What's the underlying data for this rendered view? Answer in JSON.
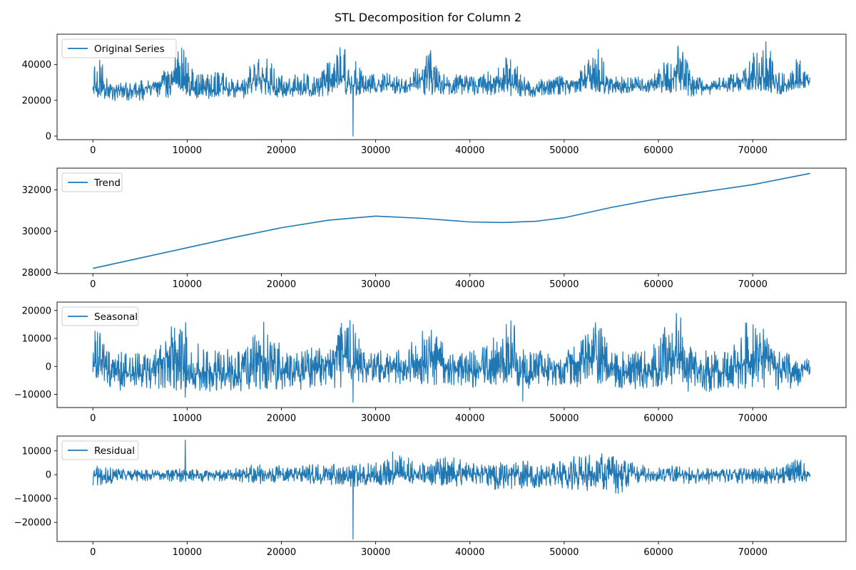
{
  "figure": {
    "title": "STL Decomposition for Column 2"
  },
  "colors": {
    "line": "#1f77b4",
    "axes": "#000000",
    "legend_border": "#cccccc"
  },
  "x_ticks": [
    "0",
    "10000",
    "20000",
    "30000",
    "40000",
    "50000",
    "60000",
    "70000"
  ],
  "chart_data": [
    {
      "type": "line",
      "series": [
        {
          "name": "Original Series"
        }
      ],
      "legend": "upper-left",
      "xlim": [
        -3800,
        79900
      ],
      "ylim": [
        -2000,
        57000
      ],
      "y_ticks": [
        0,
        20000,
        40000
      ],
      "y_tick_labels": [
        "0",
        "20000",
        "40000"
      ],
      "x_ticks": [
        0,
        10000,
        20000,
        30000,
        40000,
        50000,
        60000,
        70000
      ],
      "x_range": [
        0,
        76100
      ],
      "level": [
        [
          0,
          27500
        ],
        [
          2000,
          26000
        ],
        [
          5000,
          25000
        ],
        [
          8000,
          32000
        ],
        [
          10000,
          26000
        ],
        [
          13000,
          26000
        ],
        [
          15000,
          25500
        ],
        [
          18000,
          32000
        ],
        [
          20000,
          26000
        ],
        [
          23000,
          26000
        ],
        [
          26500,
          33000
        ],
        [
          28000,
          27000
        ],
        [
          31000,
          29000
        ],
        [
          33000,
          27000
        ],
        [
          35500,
          33000
        ],
        [
          38000,
          28000
        ],
        [
          41000,
          28000
        ],
        [
          44000,
          30000
        ],
        [
          46000,
          26000
        ],
        [
          49000,
          28000
        ],
        [
          53000,
          32000
        ],
        [
          56000,
          27000
        ],
        [
          59000,
          28000
        ],
        [
          62000,
          33000
        ],
        [
          64000,
          27000
        ],
        [
          67000,
          28000
        ],
        [
          71000,
          34000
        ],
        [
          73000,
          28000
        ],
        [
          76100,
          31000
        ]
      ],
      "envelope": [
        [
          0,
          38000,
          22000
        ],
        [
          1000,
          45000,
          21000
        ],
        [
          1600,
          29000,
          19000
        ],
        [
          3000,
          30000,
          20000
        ],
        [
          5000,
          32000,
          20000
        ],
        [
          7000,
          30000,
          20000
        ],
        [
          8300,
          47000,
          22000
        ],
        [
          9500,
          50000,
          22500
        ],
        [
          11000,
          36000,
          21000
        ],
        [
          12500,
          34000,
          21000
        ],
        [
          13000,
          40000,
          22000
        ],
        [
          14500,
          32000,
          21000
        ],
        [
          16000,
          34000,
          21000
        ],
        [
          18000,
          50000,
          23000
        ],
        [
          19000,
          43000,
          22000
        ],
        [
          20500,
          32000,
          21000
        ],
        [
          22000,
          36000,
          22000
        ],
        [
          24000,
          34000,
          22000
        ],
        [
          26000,
          50000,
          24000
        ],
        [
          27500,
          47000,
          22000
        ],
        [
          29000,
          34000,
          24000
        ],
        [
          31000,
          36000,
          24000
        ],
        [
          33000,
          32000,
          23000
        ],
        [
          35000,
          42000,
          23000
        ],
        [
          36000,
          50000,
          23000
        ],
        [
          37500,
          33000,
          23000
        ],
        [
          39000,
          35000,
          23000
        ],
        [
          41000,
          33000,
          23000
        ],
        [
          43500,
          43000,
          23000
        ],
        [
          44500,
          49000,
          22000
        ],
        [
          46000,
          31000,
          21000
        ],
        [
          48000,
          32000,
          23000
        ],
        [
          49500,
          34000,
          22000
        ],
        [
          51000,
          32000,
          23000
        ],
        [
          52500,
          42000,
          24000
        ],
        [
          53500,
          51000,
          24000
        ],
        [
          55000,
          33000,
          23000
        ],
        [
          57000,
          34000,
          24000
        ],
        [
          59000,
          32000,
          24000
        ],
        [
          61500,
          48000,
          24000
        ],
        [
          62500,
          53000,
          24000
        ],
        [
          63500,
          34000,
          22000
        ],
        [
          65000,
          32000,
          23000
        ],
        [
          67000,
          33000,
          24000
        ],
        [
          69000,
          38000,
          25000
        ],
        [
          70500,
          52000,
          25000
        ],
        [
          71500,
          56000,
          25000
        ],
        [
          72500,
          36000,
          23000
        ],
        [
          74000,
          35000,
          24000
        ],
        [
          74800,
          51000,
          26000
        ],
        [
          75500,
          36000,
          27000
        ],
        [
          76100,
          35000,
          27000
        ]
      ],
      "spikes": [
        [
          27600,
          0
        ]
      ]
    },
    {
      "type": "line",
      "series": [
        {
          "name": "Trend"
        }
      ],
      "legend": "upper-left",
      "xlim": [
        -3800,
        79900
      ],
      "ylim": [
        27950,
        33050
      ],
      "y_ticks": [
        28000,
        30000,
        32000
      ],
      "y_tick_labels": [
        "28000",
        "30000",
        "32000"
      ],
      "x_ticks": [
        0,
        10000,
        20000,
        30000,
        40000,
        50000,
        60000,
        70000
      ],
      "values": [
        [
          0,
          28200
        ],
        [
          5000,
          28700
        ],
        [
          10000,
          29200
        ],
        [
          15000,
          29700
        ],
        [
          20000,
          30170
        ],
        [
          25000,
          30530
        ],
        [
          30000,
          30730
        ],
        [
          35000,
          30620
        ],
        [
          40000,
          30450
        ],
        [
          43500,
          30420
        ],
        [
          47000,
          30480
        ],
        [
          50000,
          30650
        ],
        [
          55000,
          31150
        ],
        [
          60000,
          31580
        ],
        [
          65000,
          31920
        ],
        [
          70000,
          32250
        ],
        [
          76100,
          32800
        ]
      ]
    },
    {
      "type": "line",
      "series": [
        {
          "name": "Seasonal"
        }
      ],
      "legend": "upper-left",
      "xlim": [
        -3800,
        79900
      ],
      "ylim": [
        -14700,
        23000
      ],
      "y_ticks": [
        -10000,
        0,
        10000,
        20000
      ],
      "y_tick_labels": [
        "−10000",
        "0",
        "10000",
        "20000"
      ],
      "x_ticks": [
        0,
        10000,
        20000,
        30000,
        40000,
        50000,
        60000,
        70000
      ],
      "x_range": [
        0,
        76100
      ],
      "level": [
        [
          0,
          2000
        ],
        [
          2000,
          -2000
        ],
        [
          5000,
          -3000
        ],
        [
          8000,
          4000
        ],
        [
          10000,
          -2000
        ],
        [
          13000,
          -2000
        ],
        [
          15000,
          -3000
        ],
        [
          18000,
          4000
        ],
        [
          20000,
          -2000
        ],
        [
          23000,
          -2000
        ],
        [
          26500,
          4000
        ],
        [
          28000,
          -1000
        ],
        [
          31000,
          0
        ],
        [
          33000,
          -2000
        ],
        [
          35500,
          3000
        ],
        [
          38000,
          -1000
        ],
        [
          41000,
          -2000
        ],
        [
          44000,
          2000
        ],
        [
          46000,
          -2000
        ],
        [
          49000,
          -1000
        ],
        [
          53000,
          3000
        ],
        [
          56000,
          -2000
        ],
        [
          59000,
          -2000
        ],
        [
          62000,
          4000
        ],
        [
          64000,
          -2000
        ],
        [
          67000,
          -2000
        ],
        [
          71000,
          4000
        ],
        [
          73000,
          -2000
        ],
        [
          76100,
          -1000
        ]
      ],
      "envelope": [
        [
          0,
          18000,
          -4000
        ],
        [
          500,
          15000,
          -4500
        ],
        [
          1000,
          13000,
          -6000
        ],
        [
          2000,
          5000,
          -9000
        ],
        [
          4000,
          6000,
          -8000
        ],
        [
          6000,
          4000,
          -9000
        ],
        [
          8000,
          13000,
          -8000
        ],
        [
          9500,
          21500,
          -9000
        ],
        [
          10500,
          11000,
          -8000
        ],
        [
          12000,
          6000,
          -9000
        ],
        [
          14000,
          7000,
          -9000
        ],
        [
          16000,
          5000,
          -9000
        ],
        [
          18000,
          20000,
          -8000
        ],
        [
          19000,
          13000,
          -8000
        ],
        [
          21000,
          5000,
          -9000
        ],
        [
          23000,
          7000,
          -8000
        ],
        [
          25000,
          6000,
          -8000
        ],
        [
          26500,
          17000,
          -8000
        ],
        [
          27500,
          17000,
          -7000
        ],
        [
          29000,
          5000,
          -6000
        ],
        [
          31000,
          6000,
          -6000
        ],
        [
          33000,
          6000,
          -7000
        ],
        [
          35500,
          16000,
          -7000
        ],
        [
          37000,
          9000,
          -7000
        ],
        [
          39000,
          5000,
          -7000
        ],
        [
          41000,
          6000,
          -8000
        ],
        [
          43500,
          15000,
          -7000
        ],
        [
          44500,
          18000,
          -7000
        ],
        [
          46000,
          5000,
          -8000
        ],
        [
          48000,
          6000,
          -7000
        ],
        [
          50000,
          5000,
          -8000
        ],
        [
          52000,
          10000,
          -7000
        ],
        [
          53500,
          18000,
          -6000
        ],
        [
          55000,
          6000,
          -8000
        ],
        [
          57000,
          5000,
          -8000
        ],
        [
          59000,
          6000,
          -8000
        ],
        [
          61500,
          18000,
          -7000
        ],
        [
          62000,
          21000,
          -7000
        ],
        [
          63500,
          6000,
          -9500
        ],
        [
          65500,
          6000,
          -9000
        ],
        [
          67500,
          6000,
          -8000
        ],
        [
          69500,
          17000,
          -8000
        ],
        [
          70500,
          20500,
          -7000
        ],
        [
          72000,
          6000,
          -9000
        ],
        [
          74000,
          5000,
          -8000
        ],
        [
          75500,
          4000,
          -6000
        ],
        [
          76100,
          2000,
          -5000
        ]
      ],
      "spikes": [
        [
          9800,
          -11000
        ],
        [
          27600,
          -12800
        ],
        [
          45600,
          -12400
        ]
      ]
    },
    {
      "type": "line",
      "series": [
        {
          "name": "Residual"
        }
      ],
      "legend": "upper-left",
      "xlim": [
        -3800,
        79900
      ],
      "ylim": [
        -28000,
        16200
      ],
      "y_ticks": [
        -20000,
        -10000,
        0,
        10000
      ],
      "y_tick_labels": [
        "−20000",
        "−10000",
        "0",
        "10000"
      ],
      "x_ticks": [
        0,
        10000,
        20000,
        30000,
        40000,
        50000,
        60000,
        70000
      ],
      "x_range": [
        0,
        76100
      ],
      "level": [
        [
          0,
          0
        ],
        [
          76100,
          0
        ]
      ],
      "envelope": [
        [
          0,
          4000,
          -5000
        ],
        [
          3000,
          2500,
          -3000
        ],
        [
          6000,
          2000,
          -2500
        ],
        [
          9000,
          2500,
          -3000
        ],
        [
          12000,
          2000,
          -3000
        ],
        [
          15000,
          2500,
          -3000
        ],
        [
          18000,
          5000,
          -4000
        ],
        [
          21000,
          3000,
          -3000
        ],
        [
          24000,
          5000,
          -4000
        ],
        [
          27000,
          4000,
          -5000
        ],
        [
          30000,
          5000,
          -5000
        ],
        [
          32000,
          9000,
          -4000
        ],
        [
          35000,
          5000,
          -4000
        ],
        [
          38000,
          8000,
          -5000
        ],
        [
          41000,
          4000,
          -5000
        ],
        [
          43000,
          5000,
          -7000
        ],
        [
          46000,
          6000,
          -6000
        ],
        [
          49000,
          5000,
          -5000
        ],
        [
          52000,
          9000,
          -7000
        ],
        [
          54000,
          9000,
          -6000
        ],
        [
          56500,
          7000,
          -10000
        ],
        [
          58000,
          4000,
          -3000
        ],
        [
          61000,
          4000,
          -3000
        ],
        [
          64000,
          3000,
          -4000
        ],
        [
          67000,
          2500,
          -4000
        ],
        [
          70000,
          3000,
          -4000
        ],
        [
          73000,
          4000,
          -4000
        ],
        [
          75000,
          7000,
          -3000
        ],
        [
          76100,
          2000,
          -3000
        ]
      ],
      "spikes": [
        [
          9800,
          14500
        ],
        [
          27600,
          -27000
        ],
        [
          31800,
          9500
        ]
      ]
    }
  ]
}
